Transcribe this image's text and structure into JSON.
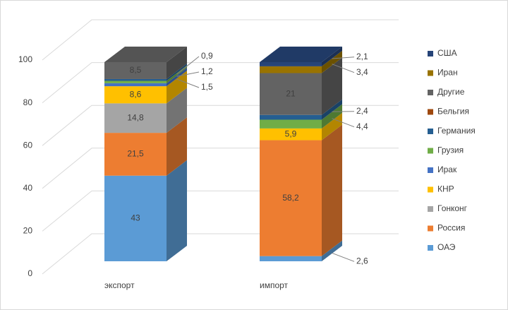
{
  "chart_data": {
    "type": "bar3d_stacked",
    "categories": [
      "экспорт",
      "импорт"
    ],
    "ylim": [
      0,
      100
    ],
    "yticks": [
      0,
      20,
      40,
      60,
      80,
      100
    ],
    "grid": true,
    "legend": "right",
    "series": [
      {
        "name": "ОАЭ",
        "color": "#5b9bd5",
        "values": [
          43,
          2.6
        ],
        "value_labels": [
          "43",
          "2,6"
        ]
      },
      {
        "name": "Россия",
        "color": "#ed7d31",
        "values": [
          21.5,
          58.2
        ],
        "value_labels": [
          "21,5",
          "58,2"
        ]
      },
      {
        "name": "Гонконг",
        "color": "#a5a5a5",
        "values": [
          14.8,
          null
        ],
        "value_labels": [
          "14,8",
          null
        ]
      },
      {
        "name": "КНР",
        "color": "#ffc000",
        "values": [
          8.6,
          5.9
        ],
        "value_labels": [
          "8,6",
          "5,9"
        ]
      },
      {
        "name": "Ирак",
        "color": "#4472c4",
        "values": [
          1.5,
          null
        ],
        "value_labels": [
          "1,5",
          null
        ]
      },
      {
        "name": "Грузия",
        "color": "#70ad47",
        "values": [
          1.2,
          4.4
        ],
        "value_labels": [
          "1,2",
          "4,4"
        ]
      },
      {
        "name": "Германия",
        "color": "#255e91",
        "values": [
          0.9,
          2.4
        ],
        "value_labels": [
          "0,9",
          "2,4"
        ]
      },
      {
        "name": "Бельгия",
        "color": "#9e480e",
        "values": [
          null,
          null
        ],
        "value_labels": [
          null,
          null
        ]
      },
      {
        "name": "Другие",
        "color": "#636363",
        "values": [
          8.5,
          21
        ],
        "value_labels": [
          "8,5",
          "21"
        ]
      },
      {
        "name": "Иран",
        "color": "#997300",
        "values": [
          null,
          3.4
        ],
        "value_labels": [
          null,
          "3,4"
        ]
      },
      {
        "name": "США",
        "color": "#264478",
        "values": [
          null,
          2.1
        ],
        "value_labels": [
          null,
          "2,1"
        ]
      }
    ]
  }
}
